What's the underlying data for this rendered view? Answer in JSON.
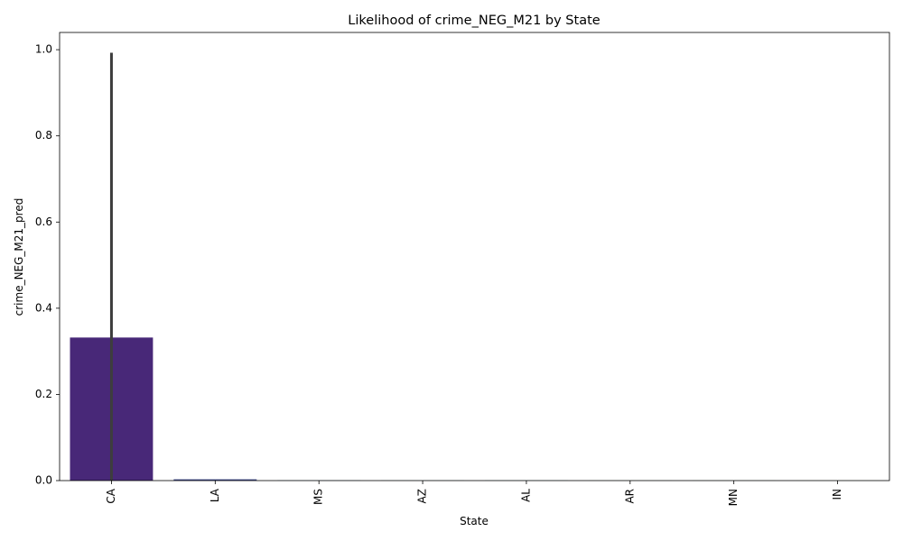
{
  "chart_data": {
    "type": "bar",
    "title": "Likelihood of crime_NEG_M21 by State",
    "xlabel": "State",
    "ylabel": "crime_NEG_M21_pred",
    "categories": [
      "CA",
      "LA",
      "MS",
      "AZ",
      "AL",
      "AR",
      "MN",
      "IN"
    ],
    "values": [
      0.332,
      0.003,
      0.0005,
      0.0003,
      0.0003,
      0.0002,
      0.0002,
      0.0001
    ],
    "error_bars": [
      {
        "low": 0.0,
        "high": 0.993
      },
      null,
      null,
      null,
      null,
      null,
      null,
      null
    ],
    "ylim": [
      0,
      1.04
    ],
    "yticks": [
      0.0,
      0.2,
      0.4,
      0.6,
      0.8,
      1.0
    ],
    "ytick_labels": [
      "0.0",
      "0.2",
      "0.4",
      "0.6",
      "0.8",
      "1.0"
    ],
    "grid": false,
    "colors": {
      "bars": [
        "#482878",
        "#3e4989",
        "#31688e",
        "#26828e",
        "#1f9e89",
        "#35b779",
        "#6ece58",
        "#b5de2b"
      ],
      "error_bar": "#3d3d3d",
      "axis": "#000000"
    }
  }
}
